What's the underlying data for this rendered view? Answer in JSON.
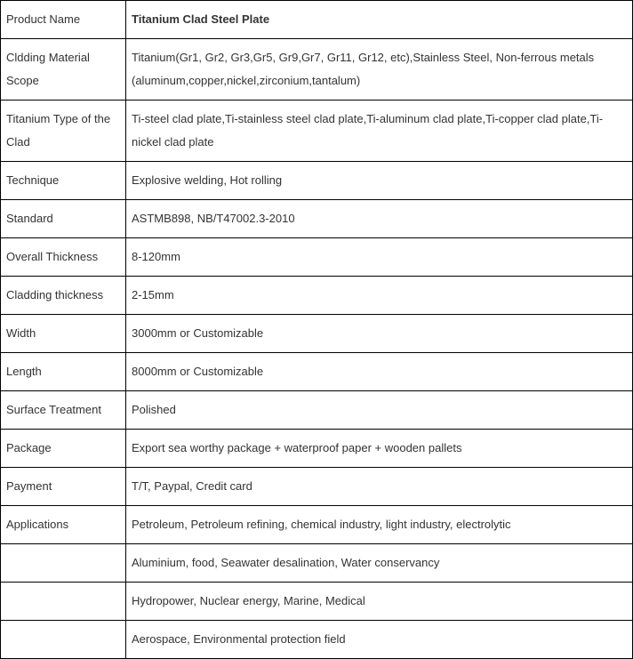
{
  "table": {
    "rows": [
      {
        "label": "Product Name",
        "value": "Titanium Clad Steel Plate",
        "bold": true
      },
      {
        "label": "Cldding Material Scope",
        "value": "Titanium(Gr1, Gr2, Gr3,Gr5, Gr9,Gr7, Gr11, Gr12, etc),Stainless Steel, Non-ferrous metals (aluminum,copper,nickel,zirconium,tantalum)"
      },
      {
        "label": "Titanium Type of the Clad",
        "value": "Ti-steel clad plate,Ti-stainless steel clad plate,Ti-aluminum clad plate,Ti-copper clad plate,Ti-nickel clad plate"
      },
      {
        "label": "Technique",
        "value": "Explosive welding, Hot rolling"
      },
      {
        "label": "Standard",
        "value": "ASTMB898,  NB/T47002.3-2010"
      },
      {
        "label": "Overall Thickness",
        "value": "8-120mm"
      },
      {
        "label": "Cladding thickness",
        "value": "2-15mm"
      },
      {
        "label": "Width",
        "value": "3000mm or Customizable"
      },
      {
        "label": "Length",
        "value": "8000mm or Customizable"
      },
      {
        "label": "Surface Treatment",
        "value": "Polished"
      },
      {
        "label": "Package",
        "value": "Export sea worthy package + waterproof paper + wooden pallets"
      },
      {
        "label": "Payment",
        "value": "T/T,   Paypal, Credit card"
      },
      {
        "label": "Applications",
        "value": "Petroleum, Petroleum refining, chemical industry, light industry, electrolytic"
      },
      {
        "label": "",
        "value": "Aluminium, food, Seawater desalination, Water conservancy"
      },
      {
        "label": "",
        "value": "Hydropower, Nuclear energy, Marine, Medical"
      },
      {
        "label": "",
        "value": "Aerospace, Environmental protection field"
      }
    ]
  }
}
